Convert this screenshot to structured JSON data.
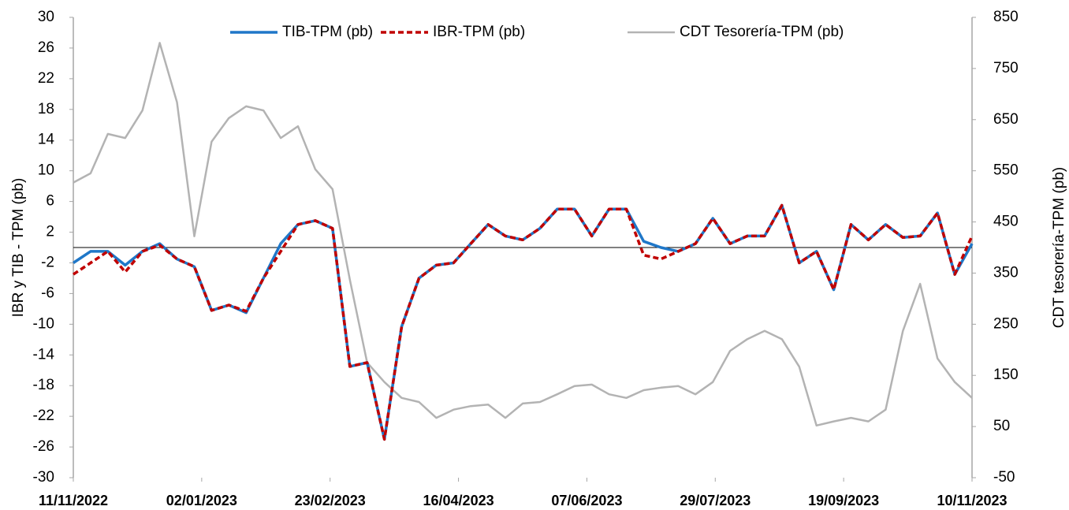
{
  "chart_data": {
    "type": "line",
    "y_label": "IBR y TIB - TPM (pb)",
    "y2_label": "CDT tesorería-TPM (pb)",
    "x": [
      "11/11/2022",
      "18/11/2022",
      "25/11/2022",
      "02/12/2022",
      "09/12/2022",
      "16/12/2022",
      "23/12/2022",
      "30/12/2022",
      "06/01/2023",
      "13/01/2023",
      "20/01/2023",
      "27/01/2023",
      "03/02/2023",
      "10/02/2023",
      "17/02/2023",
      "24/02/2023",
      "03/03/2023",
      "10/03/2023",
      "17/03/2023",
      "24/03/2023",
      "31/03/2023",
      "07/04/2023",
      "14/04/2023",
      "21/04/2023",
      "28/04/2023",
      "05/05/2023",
      "12/05/2023",
      "19/05/2023",
      "26/05/2023",
      "02/06/2023",
      "09/06/2023",
      "16/06/2023",
      "23/06/2023",
      "30/06/2023",
      "07/07/2023",
      "14/07/2023",
      "21/07/2023",
      "28/07/2023",
      "04/08/2023",
      "11/08/2023",
      "18/08/2023",
      "25/08/2023",
      "01/09/2023",
      "08/09/2023",
      "15/09/2023",
      "22/09/2023",
      "29/09/2023",
      "06/10/2023",
      "13/10/2023",
      "20/10/2023",
      "27/10/2023",
      "03/11/2023",
      "10/11/2023"
    ],
    "xlim": [
      "11/11/2022",
      "10/11/2023"
    ],
    "xticks": [
      "11/11/2022",
      "02/01/2023",
      "23/02/2023",
      "16/04/2023",
      "07/06/2023",
      "29/07/2023",
      "19/09/2023",
      "10/11/2023"
    ],
    "ylim": [
      -30,
      30
    ],
    "yticks": [
      30,
      26,
      22,
      18,
      14,
      10,
      6,
      2,
      -2,
      -6,
      -10,
      -14,
      -18,
      -22,
      -26,
      -30
    ],
    "y2lim": [
      -50,
      850
    ],
    "y2ticks": [
      850,
      750,
      650,
      550,
      450,
      350,
      250,
      150,
      50,
      -50
    ],
    "series": [
      {
        "name": "TIB-TPM (pb)",
        "color": "#1f77c8",
        "style": "solid",
        "width": 3.5,
        "values": [
          -2,
          -0.5,
          -0.5,
          -2.3,
          -0.5,
          0.5,
          -1.5,
          -2.5,
          -8.2,
          -7.5,
          -8.5,
          -4,
          0.5,
          3,
          3.5,
          2.5,
          -15.5,
          -15,
          -25,
          -10.3,
          -4,
          -2.3,
          -2,
          0.5,
          3,
          1.5,
          1,
          2.5,
          5,
          5,
          1.5,
          5,
          5,
          0.8,
          0,
          -0.5,
          0.5,
          3.8,
          0.5,
          1.5,
          1.5,
          5.5,
          -2,
          -0.5,
          -5.5,
          3,
          1,
          3,
          1.3,
          1.5,
          4.5,
          -3.5,
          0.5
        ]
      },
      {
        "name": "IBR-TPM (pb)",
        "color": "#c00000",
        "style": "dashed",
        "width": 3.5,
        "values": [
          -3.5,
          -2,
          -0.5,
          -3.2,
          -0.5,
          0.3,
          -1.5,
          -2.5,
          -8.2,
          -7.5,
          -8.3,
          -4,
          -0.5,
          3,
          3.5,
          2.5,
          -15.5,
          -15,
          -25,
          -10.3,
          -4,
          -2.3,
          -2,
          0.5,
          3,
          1.5,
          1,
          2.5,
          5,
          5,
          1.5,
          5,
          5,
          -1,
          -1.5,
          -0.5,
          0.5,
          3.8,
          0.5,
          1.5,
          1.5,
          5.5,
          -2,
          -0.5,
          -5.5,
          3,
          1,
          3,
          1.3,
          1.5,
          4.5,
          -3.5,
          1.5
        ]
      },
      {
        "name": "CDT Tesorería-TPM (pb)",
        "color": "#b3b3b3",
        "style": "solid",
        "width": 2.5,
        "axis": "y2",
        "values": [
          527,
          545,
          622,
          614,
          668,
          800,
          684,
          422,
          607,
          653,
          676,
          668,
          614,
          637,
          553,
          514,
          337,
          175,
          137,
          106,
          98,
          67,
          83,
          90,
          93,
          67,
          95,
          98,
          113,
          129,
          132,
          113,
          106,
          121,
          126,
          129,
          113,
          137,
          198,
          221,
          237,
          221,
          167,
          52,
          60,
          67,
          60,
          83,
          237,
          329,
          183,
          137,
          106
        ]
      }
    ]
  }
}
